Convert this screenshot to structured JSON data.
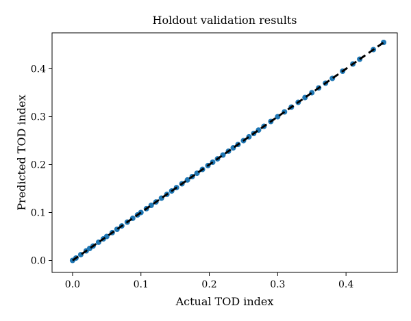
{
  "chart_data": {
    "type": "scatter",
    "title": "Holdout validation results",
    "xlabel": "Actual TOD index",
    "ylabel": "Predicted TOD index",
    "xlim": [
      -0.03,
      0.475
    ],
    "ylim": [
      -0.025,
      0.475
    ],
    "xticks": [
      0.0,
      0.1,
      0.2,
      0.3,
      0.4
    ],
    "yticks": [
      0.0,
      0.1,
      0.2,
      0.3,
      0.4
    ],
    "xtick_labels": [
      "0.0",
      "0.1",
      "0.2",
      "0.3",
      "0.4"
    ],
    "ytick_labels": [
      "0.0",
      "0.1",
      "0.2",
      "0.3",
      "0.4"
    ],
    "grid": false,
    "series": [
      {
        "kind": "points",
        "color": "#1f77b4",
        "points": [
          [
            0.0,
            0.0
          ],
          [
            0.005,
            0.005
          ],
          [
            0.012,
            0.012
          ],
          [
            0.02,
            0.02
          ],
          [
            0.025,
            0.025
          ],
          [
            0.03,
            0.03
          ],
          [
            0.038,
            0.038
          ],
          [
            0.045,
            0.045
          ],
          [
            0.05,
            0.05
          ],
          [
            0.058,
            0.058
          ],
          [
            0.065,
            0.065
          ],
          [
            0.072,
            0.072
          ],
          [
            0.08,
            0.08
          ],
          [
            0.088,
            0.088
          ],
          [
            0.095,
            0.095
          ],
          [
            0.1,
            0.1
          ],
          [
            0.108,
            0.108
          ],
          [
            0.115,
            0.115
          ],
          [
            0.122,
            0.122
          ],
          [
            0.13,
            0.13
          ],
          [
            0.138,
            0.138
          ],
          [
            0.145,
            0.145
          ],
          [
            0.152,
            0.152
          ],
          [
            0.16,
            0.16
          ],
          [
            0.168,
            0.168
          ],
          [
            0.175,
            0.175
          ],
          [
            0.182,
            0.182
          ],
          [
            0.19,
            0.19
          ],
          [
            0.198,
            0.198
          ],
          [
            0.205,
            0.205
          ],
          [
            0.212,
            0.212
          ],
          [
            0.22,
            0.22
          ],
          [
            0.228,
            0.228
          ],
          [
            0.235,
            0.235
          ],
          [
            0.242,
            0.242
          ],
          [
            0.25,
            0.25
          ],
          [
            0.258,
            0.258
          ],
          [
            0.265,
            0.265
          ],
          [
            0.272,
            0.272
          ],
          [
            0.28,
            0.28
          ],
          [
            0.29,
            0.29
          ],
          [
            0.3,
            0.3
          ],
          [
            0.31,
            0.31
          ],
          [
            0.32,
            0.32
          ],
          [
            0.33,
            0.33
          ],
          [
            0.34,
            0.34
          ],
          [
            0.35,
            0.35
          ],
          [
            0.36,
            0.36
          ],
          [
            0.37,
            0.37
          ],
          [
            0.38,
            0.38
          ],
          [
            0.395,
            0.395
          ],
          [
            0.41,
            0.41
          ],
          [
            0.42,
            0.42
          ],
          [
            0.44,
            0.44
          ],
          [
            0.455,
            0.455
          ]
        ]
      },
      {
        "kind": "reference-line",
        "color": "#000000",
        "style": "dashed",
        "x": [
          0.0,
          0.455
        ],
        "y": [
          0.0,
          0.455
        ]
      }
    ]
  }
}
